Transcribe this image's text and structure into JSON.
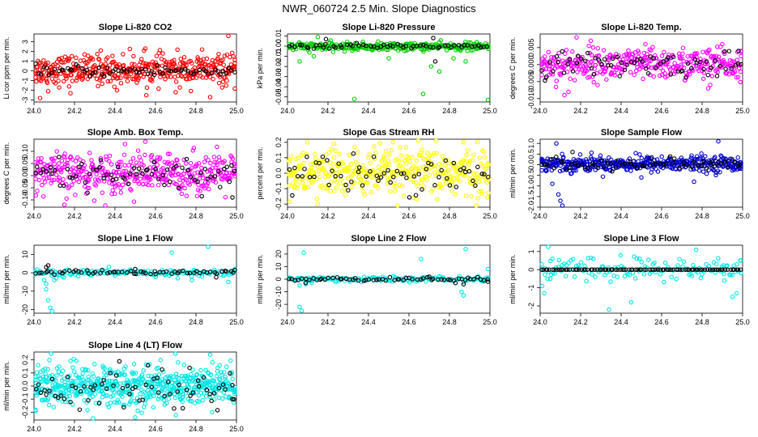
{
  "figure": {
    "title": "NWR_060724  2.5 Min. Slope Diagnostics"
  },
  "colors": {
    "axis": "#000000",
    "overlay": "#000000"
  },
  "chart_data": [
    {
      "type": "scatter",
      "title": "Slope Li-820 CO2",
      "ylabel": "Li cor ppm per min.",
      "xlim": [
        24.0,
        25.0
      ],
      "xticks": [
        "24.0",
        "24.2",
        "24.4",
        "24.6",
        "24.8",
        "25.0"
      ],
      "ylim": [
        -3.2,
        3.8
      ],
      "yticks": [
        "-3",
        "-2",
        "-1",
        "0",
        "1",
        "2",
        "3"
      ],
      "yticks_v": [
        -3,
        -2,
        -1,
        0,
        1,
        2,
        3
      ],
      "color": "#ff0000",
      "series": [
        {
          "name": "all",
          "n": 420,
          "center": 0.1,
          "spread": 0.75,
          "outliers": [
            [
              24.03,
              -2.8
            ],
            [
              24.07,
              -2.1
            ],
            [
              24.18,
              -2.3
            ],
            [
              24.33,
              2.1
            ],
            [
              24.41,
              -2.0
            ],
            [
              24.55,
              2.3
            ],
            [
              24.7,
              -2.2
            ],
            [
              24.87,
              -2.7
            ],
            [
              24.96,
              3.6
            ],
            [
              24.83,
              2.2
            ]
          ]
        },
        {
          "name": "overlay",
          "n": 70,
          "center": 0.0,
          "spread": 0.3,
          "outliers": []
        }
      ]
    },
    {
      "type": "scatter",
      "title": "Slope Li-820 Pressure",
      "ylabel": "kPa per min.",
      "xlim": [
        24.0,
        25.0
      ],
      "xticks": [
        "24.0",
        "24.2",
        "24.4",
        "24.6",
        "24.8",
        "25.0"
      ],
      "ylim": [
        -0.055,
        0.012
      ],
      "yticks": [
        "-0.05",
        "-0.04",
        "-0.03",
        "-0.02",
        "-0.01",
        "0.00",
        "0.01"
      ],
      "yticks_v": [
        -0.05,
        -0.04,
        -0.03,
        -0.02,
        -0.01,
        0.0,
        0.01
      ],
      "color": "#00cc00",
      "series": [
        {
          "name": "all",
          "n": 300,
          "center": -0.0005,
          "spread": 0.002,
          "outliers": [
            [
              24.06,
              -0.015
            ],
            [
              24.13,
              -0.01
            ],
            [
              24.33,
              -0.052
            ],
            [
              24.5,
              -0.012
            ],
            [
              24.67,
              -0.047
            ],
            [
              24.71,
              -0.02
            ],
            [
              24.75,
              -0.025
            ],
            [
              24.82,
              -0.012
            ],
            [
              24.88,
              -0.015
            ],
            [
              24.99,
              -0.053
            ],
            [
              24.15,
              0.009
            ]
          ]
        },
        {
          "name": "overlay",
          "n": 60,
          "center": 0.0,
          "spread": 0.0012,
          "outliers": [
            [
              24.19,
              0.007
            ],
            [
              24.73,
              -0.015
            ],
            [
              24.72,
              0.008
            ]
          ]
        }
      ]
    },
    {
      "type": "scatter",
      "title": "Slope Li-820 Temp.",
      "ylabel": "degrees C per min.",
      "xlim": [
        24.0,
        25.0
      ],
      "xticks": [
        "24.0",
        "24.2",
        "24.4",
        "24.6",
        "24.8",
        "25.0"
      ],
      "ylim": [
        -0.011,
        0.009
      ],
      "yticks": [
        "-0.010",
        "-0.005",
        "0.000",
        "0.005"
      ],
      "yticks_v": [
        -0.01,
        -0.005,
        0.0,
        0.005
      ],
      "color": "#ff00ff",
      "series": [
        {
          "name": "all",
          "n": 380,
          "center": 0.0,
          "spread": 0.0023,
          "outliers": [
            [
              24.12,
              -0.009
            ],
            [
              24.14,
              -0.008
            ],
            [
              24.18,
              0.008
            ],
            [
              24.25,
              0.007
            ],
            [
              24.52,
              0.006
            ],
            [
              24.83,
              -0.007
            ],
            [
              24.84,
              -0.006
            ],
            [
              24.9,
              0.006
            ]
          ]
        },
        {
          "name": "overlay",
          "n": 70,
          "center": 0.0,
          "spread": 0.0018,
          "outliers": [
            [
              24.98,
              0.004
            ]
          ]
        }
      ]
    },
    {
      "type": "scatter",
      "title": "Slope Amb. Box Temp.",
      "ylabel": "degrees C per min.",
      "xlim": [
        24.0,
        25.0
      ],
      "xticks": [
        "24.0",
        "24.2",
        "24.4",
        "24.6",
        "24.8",
        "25.0"
      ],
      "ylim": [
        -0.13,
        0.15
      ],
      "yticks": [
        "-0.10",
        "-0.05",
        "0.00",
        "0.05",
        "0.10"
      ],
      "yticks_v": [
        -0.1,
        -0.05,
        0.0,
        0.05,
        0.1
      ],
      "color": "#ff00ff",
      "series": [
        {
          "name": "all",
          "n": 420,
          "center": 0.01,
          "spread": 0.04,
          "outliers": [
            [
              24.45,
              0.13
            ],
            [
              24.55,
              0.14
            ],
            [
              24.15,
              -0.12
            ]
          ]
        },
        {
          "name": "overlay",
          "n": 70,
          "center": 0.0,
          "spread": 0.035,
          "outliers": [
            [
              24.98,
              -0.09
            ]
          ]
        }
      ]
    },
    {
      "type": "scatter",
      "title": "Slope Gas Stream RH",
      "ylabel": "percent per min.",
      "xlim": [
        24.0,
        25.0
      ],
      "xticks": [
        "24.0",
        "24.2",
        "24.4",
        "24.6",
        "24.8",
        "25.0"
      ],
      "ylim": [
        -0.22,
        0.22
      ],
      "yticks": [
        "-0.2",
        "-0.1",
        "0.0",
        "0.1",
        "0.2"
      ],
      "yticks_v": [
        -0.2,
        -0.1,
        0.0,
        0.1,
        0.2
      ],
      "color": "#ffff00",
      "series": [
        {
          "name": "all",
          "n": 420,
          "center": 0.0,
          "spread": 0.08,
          "outliers": [
            [
              24.15,
              -0.2
            ],
            [
              24.23,
              0.19
            ],
            [
              24.87,
              0.2
            ]
          ]
        },
        {
          "name": "overlay",
          "n": 65,
          "center": 0.0,
          "spread": 0.06,
          "outliers": []
        }
      ]
    },
    {
      "type": "scatter",
      "title": "Slope Sample Flow",
      "ylabel": "ml/min per min.",
      "xlim": [
        24.0,
        25.0
      ],
      "xticks": [
        "24.0",
        "24.2",
        "24.4",
        "24.6",
        "24.8",
        "25.0"
      ],
      "ylim": [
        -2.0,
        1.2
      ],
      "yticks": [
        "-2.0",
        "-1.5",
        "-1.0",
        "-0.5",
        "0.0",
        "0.5",
        "1.0"
      ],
      "yticks_v": [
        -2.0,
        -1.5,
        -1.0,
        -0.5,
        0.0,
        0.5,
        1.0
      ],
      "color": "#0000cc",
      "series": [
        {
          "name": "all",
          "n": 420,
          "center": 0.05,
          "spread": 0.18,
          "outliers": [
            [
              24.08,
              1.0
            ],
            [
              24.09,
              -1.4
            ],
            [
              24.1,
              -1.7
            ],
            [
              24.11,
              -1.95
            ],
            [
              24.06,
              -0.9
            ],
            [
              24.88,
              1.1
            ],
            [
              24.76,
              -0.8
            ],
            [
              24.5,
              -0.6
            ]
          ]
        },
        {
          "name": "overlay",
          "n": 65,
          "center": 0.0,
          "spread": 0.15,
          "outliers": [
            [
              24.16,
              0.6
            ]
          ]
        }
      ]
    },
    {
      "type": "scatter",
      "title": "Slope Line 1 Flow",
      "ylabel": "ml/min per min.",
      "xlim": [
        24.0,
        25.0
      ],
      "xticks": [
        "24.0",
        "24.2",
        "24.4",
        "24.6",
        "24.8",
        "25.0"
      ],
      "ylim": [
        -22,
        15
      ],
      "yticks": [
        "-20",
        "-10",
        "0",
        "10"
      ],
      "yticks_v": [
        -20,
        -10,
        0,
        10
      ],
      "color": "#00e6e6",
      "series": [
        {
          "name": "all",
          "n": 150,
          "center": 0.0,
          "spread": 0.9,
          "outliers": [
            [
              24.05,
              -4
            ],
            [
              24.06,
              -9
            ],
            [
              24.07,
              -15
            ],
            [
              24.08,
              -19
            ],
            [
              24.09,
              -21
            ],
            [
              24.06,
              -6
            ],
            [
              24.1,
              -4
            ],
            [
              24.11,
              -3
            ],
            [
              24.14,
              -2
            ],
            [
              24.68,
              11
            ],
            [
              24.71,
              -3
            ],
            [
              24.78,
              -4
            ],
            [
              24.83,
              -2
            ],
            [
              24.86,
              15
            ],
            [
              24.96,
              -5
            ],
            [
              24.4,
              -1.5
            ]
          ]
        },
        {
          "name": "overlay",
          "n": 60,
          "center": 0.3,
          "spread": 0.6,
          "outliers": [
            [
              24.07,
              4
            ],
            [
              24.06,
              3
            ],
            [
              24.5,
              2
            ],
            [
              24.9,
              -2.5
            ],
            [
              25.0,
              1.5
            ]
          ]
        }
      ]
    },
    {
      "type": "scatter",
      "title": "Slope Line 2 Flow",
      "ylabel": "ml/min per min.",
      "xlim": [
        24.0,
        25.0
      ],
      "xticks": [
        "24.0",
        "24.2",
        "24.4",
        "24.6",
        "24.8",
        "25.0"
      ],
      "ylim": [
        -27,
        27
      ],
      "yticks": [
        "-20",
        "-10",
        "0",
        "10",
        "20"
      ],
      "yticks_v": [
        -20,
        -10,
        0,
        10,
        20
      ],
      "color": "#00e6e6",
      "series": [
        {
          "name": "all",
          "n": 150,
          "center": 0.0,
          "spread": 1.0,
          "outliers": [
            [
              24.06,
              -22
            ],
            [
              24.07,
              -25
            ],
            [
              24.08,
              21
            ],
            [
              24.06,
              -5
            ],
            [
              24.09,
              -4
            ],
            [
              24.12,
              -3
            ],
            [
              24.66,
              16
            ],
            [
              24.86,
              -10
            ],
            [
              24.87,
              -13
            ],
            [
              24.88,
              24
            ],
            [
              24.99,
              8
            ],
            [
              24.97,
              -2
            ]
          ]
        },
        {
          "name": "overlay",
          "n": 60,
          "center": 0.0,
          "spread": 0.7,
          "outliers": [
            [
              24.87,
              -4
            ],
            [
              24.83,
              -3
            ],
            [
              24.99,
              -2
            ],
            [
              24.09,
              -3
            ],
            [
              24.7,
              2
            ]
          ]
        }
      ]
    },
    {
      "type": "scatter",
      "title": "Slope Line 3 Flow",
      "ylabel": "ml/min per min.",
      "xlim": [
        24.0,
        25.0
      ],
      "xticks": [
        "24.0",
        "24.2",
        "24.4",
        "24.6",
        "24.8",
        "25.0"
      ],
      "ylim": [
        -2.4,
        1.35
      ],
      "yticks": [
        "-2",
        "-1",
        "0",
        "1"
      ],
      "yticks_v": [
        -2,
        -1,
        0,
        1
      ],
      "color": "#00e6e6",
      "series": [
        {
          "name": "all",
          "n": 130,
          "center": 0.0,
          "spread": 0.35,
          "outliers": [
            [
              24.01,
              -0.9
            ],
            [
              24.02,
              -1.3
            ],
            [
              24.04,
              1.3
            ],
            [
              24.05,
              -0.5
            ],
            [
              24.06,
              0.6
            ],
            [
              24.34,
              -2.2
            ],
            [
              24.45,
              -1.8
            ],
            [
              24.49,
              0.6
            ],
            [
              24.77,
              1.1
            ],
            [
              24.91,
              -0.6
            ],
            [
              24.95,
              -1.5
            ],
            [
              24.97,
              -1.3
            ],
            [
              24.99,
              0.5
            ]
          ]
        },
        {
          "name": "overlay",
          "n": 90,
          "center": 0.0,
          "spread": 0.0,
          "outliers": []
        }
      ]
    },
    {
      "type": "scatter",
      "title": "Slope Line 4 (LT) Flow",
      "ylabel": "ml/min per min.",
      "xlim": [
        24.0,
        25.0
      ],
      "xticks": [
        "24.0",
        "24.2",
        "24.4",
        "24.6",
        "24.8",
        "25.0"
      ],
      "ylim": [
        -0.26,
        0.26
      ],
      "yticks": [
        "-0.2",
        "-0.1",
        "0.0",
        "0.1",
        "0.2"
      ],
      "yticks_v": [
        -0.2,
        -0.1,
        0.0,
        0.1,
        0.2
      ],
      "color": "#00e6e6",
      "series": [
        {
          "name": "all",
          "n": 600,
          "center": 0.0,
          "spread": 0.08,
          "outliers": [
            [
              24.5,
              -0.24
            ],
            [
              24.87,
              0.24
            ],
            [
              24.88,
              -0.2
            ],
            [
              24.02,
              0.16
            ]
          ]
        },
        {
          "name": "overlay",
          "n": 70,
          "center": -0.02,
          "spread": 0.07,
          "outliers": [
            [
              24.98,
              -0.1
            ]
          ]
        }
      ]
    }
  ]
}
